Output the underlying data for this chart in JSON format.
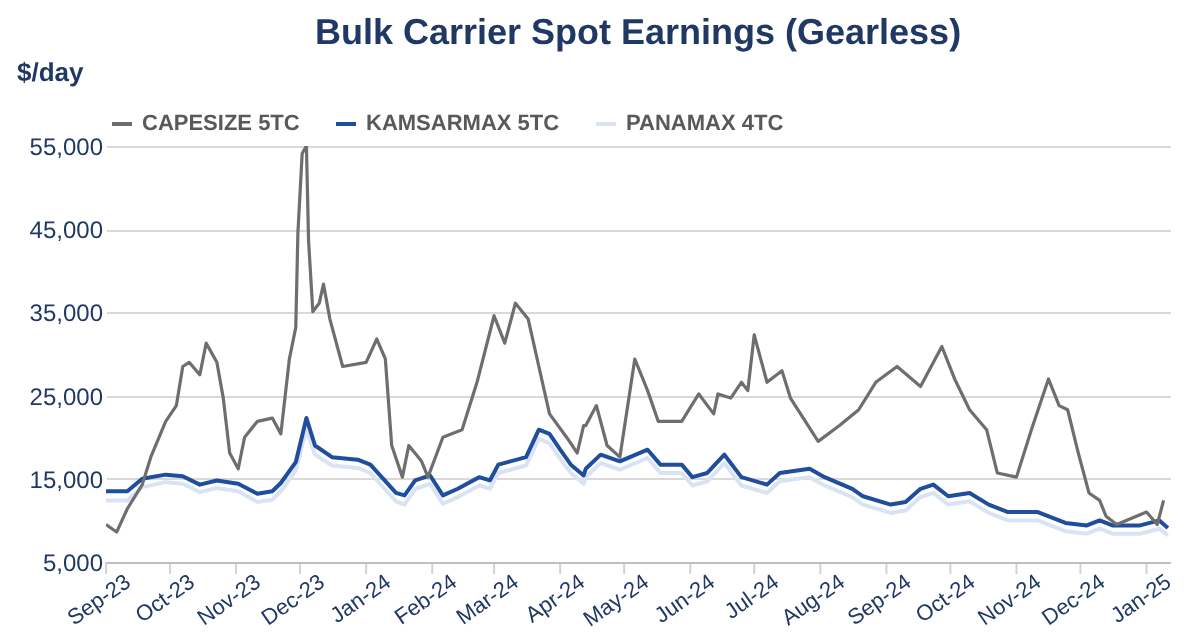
{
  "chart_data": {
    "type": "line",
    "title": "Bulk Carrier Spot Earnings (Gearless)",
    "ylabel": "$/day",
    "xlim": [
      "2023-09-01",
      "2025-01-12"
    ],
    "xticks": [
      {
        "value": "2023-09-01",
        "label": "Sep-23"
      },
      {
        "value": "2023-10-01",
        "label": "Oct-23"
      },
      {
        "value": "2023-11-01",
        "label": "Nov-23"
      },
      {
        "value": "2023-12-01",
        "label": "Dec-23"
      },
      {
        "value": "2024-01-01",
        "label": "Jan-24"
      },
      {
        "value": "2024-02-01",
        "label": "Feb-24"
      },
      {
        "value": "2024-03-01",
        "label": "Mar-24"
      },
      {
        "value": "2024-04-01",
        "label": "Apr-24"
      },
      {
        "value": "2024-05-01",
        "label": "May-24"
      },
      {
        "value": "2024-06-01",
        "label": "Jun-24"
      },
      {
        "value": "2024-07-01",
        "label": "Jul-24"
      },
      {
        "value": "2024-08-01",
        "label": "Aug-24"
      },
      {
        "value": "2024-09-01",
        "label": "Sep-24"
      },
      {
        "value": "2024-10-01",
        "label": "Oct-24"
      },
      {
        "value": "2024-11-01",
        "label": "Nov-24"
      },
      {
        "value": "2024-12-01",
        "label": "Dec-24"
      },
      {
        "value": "2025-01-01",
        "label": "Jan-25"
      }
    ],
    "ylim": [
      5000,
      55000
    ],
    "yticks": [
      {
        "value": 5000,
        "label": "5,000"
      },
      {
        "value": 15000,
        "label": "15,000"
      },
      {
        "value": 25000,
        "label": "25,000"
      },
      {
        "value": 35000,
        "label": "35,000"
      },
      {
        "value": 45000,
        "label": "45,000"
      },
      {
        "value": 55000,
        "label": "55,000"
      }
    ],
    "grid": "y",
    "legend": "top",
    "marker": "none",
    "line_style": "solid",
    "series": [
      {
        "name": "CAPESIZE 5TC",
        "color": "#6e6e6e",
        "x": [
          "2023-09-01",
          "2023-09-06",
          "2023-09-11",
          "2023-09-18",
          "2023-09-22",
          "2023-09-29",
          "2023-10-04",
          "2023-10-07",
          "2023-10-10",
          "2023-10-15",
          "2023-10-18",
          "2023-10-23",
          "2023-10-26",
          "2023-10-29",
          "2023-11-02",
          "2023-11-05",
          "2023-11-11",
          "2023-11-18",
          "2023-11-22",
          "2023-11-26",
          "2023-11-29",
          "2023-11-30",
          "2023-12-02",
          "2023-12-04",
          "2023-12-05",
          "2023-12-07",
          "2023-12-10",
          "2023-12-12",
          "2023-12-15",
          "2023-12-21",
          "2024-01-01",
          "2024-01-06",
          "2024-01-10",
          "2024-01-13",
          "2024-01-18",
          "2024-01-21",
          "2024-01-27",
          "2024-01-30",
          "2024-02-06",
          "2024-02-15",
          "2024-02-22",
          "2024-03-01",
          "2024-03-06",
          "2024-03-11",
          "2024-03-17",
          "2024-03-22",
          "2024-03-27",
          "2024-04-04",
          "2024-04-09",
          "2024-04-12",
          "2024-04-13",
          "2024-04-18",
          "2024-04-23",
          "2024-04-29",
          "2024-05-06",
          "2024-05-12",
          "2024-05-17",
          "2024-05-28",
          "2024-06-05",
          "2024-06-12",
          "2024-06-14",
          "2024-06-20",
          "2024-06-25",
          "2024-06-28",
          "2024-07-01",
          "2024-07-07",
          "2024-07-14",
          "2024-07-18",
          "2024-07-31",
          "2024-08-10",
          "2024-08-19",
          "2024-08-27",
          "2024-09-06",
          "2024-09-17",
          "2024-09-27",
          "2024-10-03",
          "2024-10-10",
          "2024-10-18",
          "2024-10-23",
          "2024-11-01",
          "2024-11-08",
          "2024-11-16",
          "2024-11-21",
          "2024-11-25",
          "2024-11-30",
          "2024-12-05",
          "2024-12-10",
          "2024-12-13",
          "2024-12-18",
          "2025-01-01",
          "2025-01-06",
          "2025-01-09"
        ],
        "values": [
          9500,
          8600,
          11400,
          14300,
          17600,
          21900,
          23800,
          28500,
          29000,
          27500,
          31300,
          29000,
          24700,
          18100,
          16200,
          20000,
          21900,
          22300,
          20400,
          29400,
          33200,
          44600,
          54100,
          55000,
          43600,
          35100,
          36100,
          38400,
          34200,
          28500,
          29000,
          31800,
          29400,
          19000,
          15200,
          19000,
          17100,
          15200,
          20000,
          20900,
          26600,
          34600,
          31300,
          36100,
          34200,
          28500,
          22800,
          20000,
          18100,
          21400,
          21400,
          23800,
          19000,
          17600,
          29400,
          25600,
          21900,
          21900,
          25200,
          22800,
          25200,
          24700,
          26600,
          25600,
          32300,
          26600,
          28000,
          24700,
          19500,
          21400,
          23300,
          26600,
          28500,
          26100,
          30900,
          27000,
          23300,
          20900,
          15700,
          15200,
          20900,
          27000,
          23800,
          23300,
          18100,
          13300,
          12400,
          10500,
          9500,
          11000,
          9500,
          12400
        ]
      },
      {
        "name": "KAMSARMAX 5TC",
        "color": "#1f4e9c",
        "x": [
          "2023-09-01",
          "2023-09-11",
          "2023-09-18",
          "2023-09-29",
          "2023-10-07",
          "2023-10-15",
          "2023-10-23",
          "2023-11-02",
          "2023-11-11",
          "2023-11-18",
          "2023-11-22",
          "2023-11-29",
          "2023-12-04",
          "2023-12-08",
          "2023-12-16",
          "2023-12-28",
          "2024-01-03",
          "2024-01-15",
          "2024-01-19",
          "2024-01-24",
          "2024-01-31",
          "2024-02-06",
          "2024-02-13",
          "2024-02-23",
          "2024-02-28",
          "2024-03-03",
          "2024-03-16",
          "2024-03-22",
          "2024-03-27",
          "2024-04-01",
          "2024-04-06",
          "2024-04-12",
          "2024-04-13",
          "2024-04-20",
          "2024-04-29",
          "2024-05-12",
          "2024-05-18",
          "2024-05-28",
          "2024-06-02",
          "2024-06-09",
          "2024-06-17",
          "2024-06-25",
          "2024-07-07",
          "2024-07-13",
          "2024-07-27",
          "2024-08-03",
          "2024-08-16",
          "2024-08-21",
          "2024-09-03",
          "2024-09-10",
          "2024-09-17",
          "2024-09-23",
          "2024-09-30",
          "2024-10-10",
          "2024-10-19",
          "2024-10-28",
          "2024-11-11",
          "2024-11-24",
          "2024-12-04",
          "2024-12-10",
          "2024-12-16",
          "2024-12-29",
          "2025-01-07",
          "2025-01-11"
        ],
        "values": [
          13500,
          13500,
          15000,
          15500,
          15300,
          14300,
          14800,
          14400,
          13200,
          13500,
          14500,
          17000,
          22300,
          19000,
          17600,
          17300,
          16700,
          13300,
          13000,
          14800,
          15400,
          13000,
          13800,
          15200,
          14800,
          16700,
          17600,
          20900,
          20400,
          18500,
          16700,
          15400,
          16200,
          17900,
          17100,
          18500,
          16700,
          16700,
          15200,
          15700,
          17900,
          15200,
          14300,
          15700,
          16200,
          15200,
          13800,
          12900,
          11900,
          12200,
          13800,
          14300,
          12900,
          13300,
          11900,
          11000,
          11000,
          9700,
          9400,
          10000,
          9400,
          9400,
          10000,
          9100
        ]
      },
      {
        "name": "PANAMAX 4TC",
        "color": "#d9e3f3",
        "x": [
          "2023-09-01",
          "2023-09-11",
          "2023-09-18",
          "2023-09-29",
          "2023-10-07",
          "2023-10-15",
          "2023-10-23",
          "2023-11-02",
          "2023-11-11",
          "2023-11-18",
          "2023-11-22",
          "2023-11-29",
          "2023-12-04",
          "2023-12-08",
          "2023-12-16",
          "2023-12-28",
          "2024-01-03",
          "2024-01-15",
          "2024-01-19",
          "2024-01-24",
          "2024-01-31",
          "2024-02-06",
          "2024-02-13",
          "2024-02-23",
          "2024-02-28",
          "2024-03-03",
          "2024-03-16",
          "2024-03-22",
          "2024-03-27",
          "2024-04-01",
          "2024-04-06",
          "2024-04-12",
          "2024-04-13",
          "2024-04-20",
          "2024-04-29",
          "2024-05-12",
          "2024-05-18",
          "2024-05-28",
          "2024-06-02",
          "2024-06-09",
          "2024-06-17",
          "2024-06-25",
          "2024-07-07",
          "2024-07-13",
          "2024-07-27",
          "2024-08-03",
          "2024-08-16",
          "2024-08-21",
          "2024-09-03",
          "2024-09-10",
          "2024-09-17",
          "2024-09-23",
          "2024-09-30",
          "2024-10-10",
          "2024-10-19",
          "2024-10-28",
          "2024-11-11",
          "2024-11-24",
          "2024-12-04",
          "2024-12-10",
          "2024-12-16",
          "2024-12-29",
          "2025-01-07",
          "2025-01-11"
        ],
        "values": [
          12400,
          12400,
          14000,
          14600,
          14400,
          13400,
          13900,
          13500,
          12200,
          12500,
          13500,
          16000,
          21000,
          17900,
          16600,
          16300,
          15700,
          12300,
          11900,
          13800,
          14400,
          12000,
          12800,
          14200,
          13800,
          15700,
          16600,
          19800,
          19300,
          17400,
          15700,
          14400,
          15200,
          16900,
          16100,
          17500,
          15700,
          15700,
          14200,
          14700,
          16900,
          14200,
          13300,
          14700,
          15200,
          14200,
          12800,
          11900,
          10900,
          11200,
          12800,
          13300,
          11900,
          12300,
          10900,
          10000,
          10000,
          8700,
          8400,
          9000,
          8400,
          8400,
          9000,
          8200
        ]
      }
    ]
  }
}
